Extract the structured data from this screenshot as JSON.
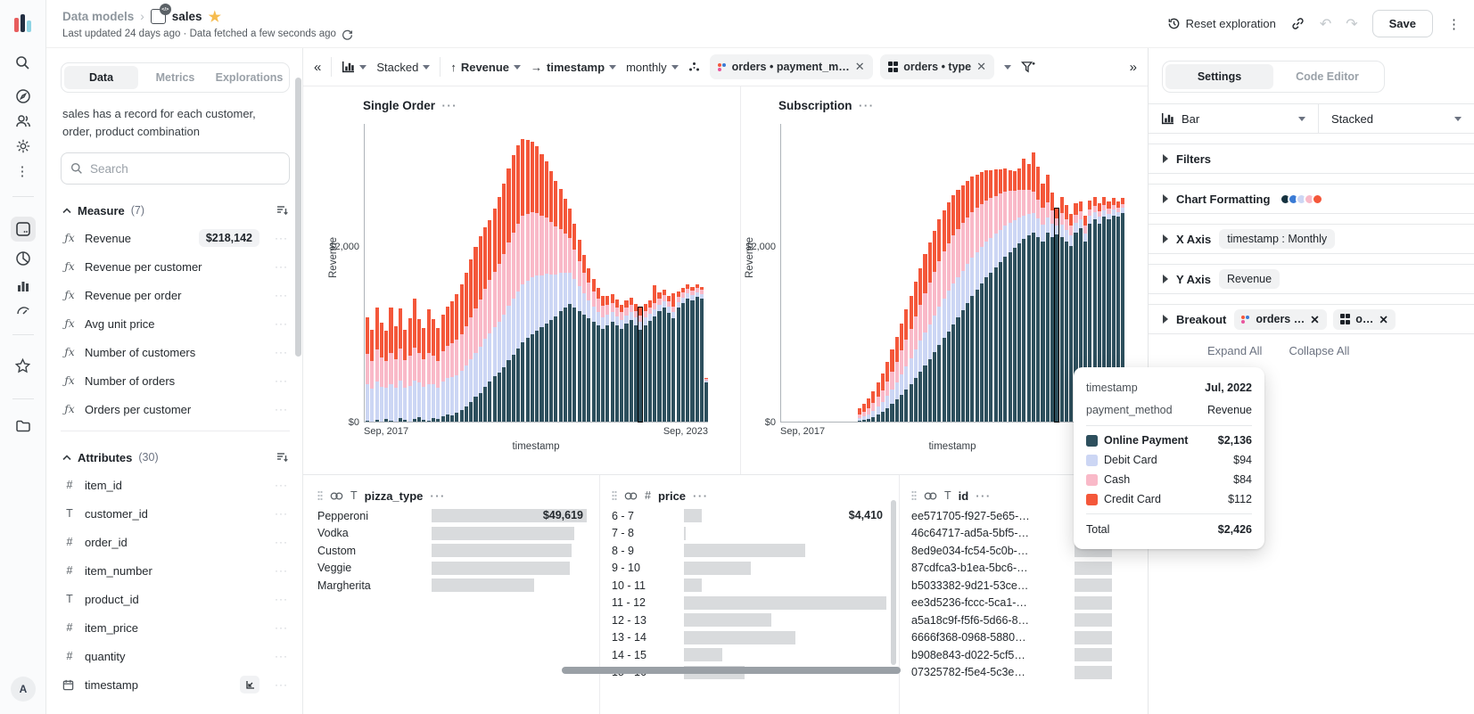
{
  "topbar": {
    "breadcrumb_root": "Data models",
    "breadcrumb_sep": "›",
    "title": "sales",
    "subtitle": "Last updated 24 days ago · Data fetched a few seconds ago",
    "reset_label": "Reset exploration",
    "save_label": "Save"
  },
  "icons": {
    "rail": [
      "logo",
      "search-icon",
      "compass-icon",
      "users-icon",
      "gear-icon",
      "kebab-icon",
      "model-icon",
      "pivot-icon",
      "bar-chart-icon",
      "gauge-icon",
      "star-icon",
      "folder-icon",
      "avatar"
    ],
    "avatar_letter": "A"
  },
  "left_panel": {
    "tabs": [
      "Data",
      "Metrics",
      "Explorations"
    ],
    "active_tab": "Data",
    "description": "sales has a record for each customer, order, product combination",
    "search_placeholder": "Search",
    "measure_section": {
      "label": "Measure",
      "count": "(7)"
    },
    "measures": [
      {
        "name": "Revenue",
        "badge": "$218,142"
      },
      {
        "name": "Revenue per customer"
      },
      {
        "name": "Revenue per order"
      },
      {
        "name": "Avg unit price"
      },
      {
        "name": "Number of customers"
      },
      {
        "name": "Number of orders"
      },
      {
        "name": "Orders per customer"
      }
    ],
    "attribute_section": {
      "label": "Attributes",
      "count": "(30)"
    },
    "attributes": [
      {
        "name": "item_id",
        "type": "number"
      },
      {
        "name": "customer_id",
        "type": "text"
      },
      {
        "name": "order_id",
        "type": "number"
      },
      {
        "name": "item_number",
        "type": "number"
      },
      {
        "name": "product_id",
        "type": "text"
      },
      {
        "name": "item_price",
        "type": "number"
      },
      {
        "name": "quantity",
        "type": "number"
      },
      {
        "name": "timestamp",
        "type": "date",
        "axis_indicator": true
      }
    ]
  },
  "toolbar": {
    "stack_label": "Stacked",
    "y_field": "Revenue",
    "x_field": "timestamp",
    "granularity": "monthly",
    "breakout_chips": [
      {
        "label": "orders • payment_m…",
        "icon": "color-dots-icon"
      },
      {
        "label": "orders • type",
        "icon": "grid-icon"
      }
    ]
  },
  "chart_data": [
    {
      "type": "bar",
      "stacked": true,
      "title": "Single Order",
      "xlabel": "timestamp",
      "ylabel": "Revenue",
      "y_ticks": [
        "$0",
        "$2,000"
      ],
      "ylim": [
        0,
        3400
      ],
      "x_ticks": [
        "Sep, 2017",
        "Sep, 2023"
      ],
      "highlight_index": 58,
      "series": [
        {
          "name": "Online Payment",
          "color": "#2d4f5d",
          "values": [
            10,
            0,
            20,
            0,
            30,
            10,
            0,
            40,
            20,
            0,
            30,
            50,
            20,
            10,
            40,
            30,
            60,
            80,
            70,
            100,
            130,
            170,
            220,
            280,
            330,
            400,
            460,
            520,
            560,
            620,
            700,
            760,
            830,
            900,
            950,
            1000,
            1040,
            1080,
            1120,
            1160,
            1200,
            1260,
            1300,
            1340,
            1300,
            1260,
            1220,
            1180,
            1140,
            1100,
            1060,
            1100,
            1140,
            1100,
            1060,
            1120,
            1160,
            1100,
            1050,
            1100,
            1150,
            1200,
            1260,
            1300,
            1240,
            1180,
            1300,
            1350,
            1400,
            1380,
            1420,
            1400,
            450
          ]
        },
        {
          "name": "Debit Card",
          "color": "#ccd6f4",
          "values": [
            420,
            380,
            440,
            400,
            360,
            420,
            390,
            430,
            370,
            410,
            440,
            400,
            380,
            420,
            390,
            360,
            400,
            420,
            440,
            430,
            450,
            470,
            490,
            500,
            520,
            540,
            550,
            560,
            580,
            600,
            620,
            640,
            650,
            660,
            650,
            640,
            620,
            590,
            560,
            520,
            480,
            440,
            400,
            360,
            320,
            280,
            240,
            200,
            170,
            150,
            130,
            120,
            110,
            100,
            95,
            90,
            90,
            85,
            90,
            85,
            80,
            80,
            75,
            75,
            70,
            70,
            65,
            65,
            60,
            60,
            55,
            55,
            20
          ]
        },
        {
          "name": "Cash",
          "color": "#f9b9c8",
          "values": [
            340,
            310,
            360,
            330,
            300,
            350,
            320,
            360,
            310,
            340,
            370,
            330,
            310,
            350,
            320,
            300,
            340,
            360,
            380,
            400,
            420,
            450,
            480,
            510,
            540,
            570,
            600,
            630,
            660,
            690,
            720,
            750,
            770,
            780,
            770,
            750,
            720,
            680,
            640,
            590,
            540,
            490,
            440,
            390,
            340,
            290,
            240,
            200,
            170,
            150,
            130,
            115,
            105,
            95,
            90,
            85,
            80,
            78,
            70,
            75,
            72,
            70,
            68,
            65,
            62,
            60,
            58,
            55,
            52,
            50,
            48,
            45,
            15
          ]
        },
        {
          "name": "Credit Card",
          "color": "#f4573a",
          "values": [
            420,
            360,
            480,
            400,
            340,
            520,
            380,
            460,
            350,
            430,
            560,
            390,
            360,
            500,
            420,
            380,
            420,
            450,
            480,
            520,
            560,
            610,
            660,
            700,
            720,
            700,
            680,
            720,
            760,
            800,
            840,
            880,
            900,
            880,
            840,
            800,
            760,
            700,
            640,
            580,
            520,
            460,
            400,
            340,
            290,
            240,
            200,
            170,
            140,
            120,
            110,
            100,
            95,
            90,
            85,
            80,
            80,
            75,
            90,
            80,
            75,
            200,
            70,
            65,
            60,
            150,
            60,
            55,
            50,
            45,
            40,
            35,
            10
          ]
        }
      ]
    },
    {
      "type": "bar",
      "stacked": true,
      "title": "Subscription",
      "xlabel": "timestamp",
      "ylabel": "Revenue",
      "y_ticks": [
        "$0",
        "$2,000"
      ],
      "ylim": [
        0,
        3400
      ],
      "x_ticks": [
        "Sep, 2017"
      ],
      "highlight_index": 58,
      "series": [
        {
          "name": "Online Payment",
          "color": "#2d4f5d",
          "values": [
            0,
            0,
            0,
            0,
            0,
            0,
            0,
            0,
            0,
            0,
            0,
            0,
            0,
            0,
            0,
            0,
            10,
            20,
            30,
            50,
            80,
            110,
            150,
            200,
            250,
            310,
            370,
            430,
            500,
            570,
            640,
            710,
            790,
            870,
            950,
            1030,
            1110,
            1190,
            1270,
            1350,
            1430,
            1500,
            1570,
            1640,
            1700,
            1760,
            1820,
            1880,
            1930,
            1980,
            2030,
            2080,
            2120,
            2150,
            2100,
            2050,
            2150,
            2100,
            2136,
            2100,
            2050,
            2000,
            2150,
            2200,
            2050,
            2250,
            2300,
            2250,
            2330,
            2300,
            2350,
            2330,
            2380
          ]
        },
        {
          "name": "Debit Card",
          "color": "#ccd6f4",
          "values": [
            0,
            0,
            0,
            0,
            0,
            0,
            0,
            0,
            0,
            0,
            0,
            0,
            0,
            0,
            0,
            0,
            30,
            40,
            50,
            70,
            90,
            110,
            140,
            170,
            200,
            230,
            260,
            290,
            320,
            350,
            380,
            400,
            420,
            440,
            450,
            460,
            460,
            455,
            450,
            445,
            440,
            430,
            420,
            410,
            395,
            380,
            365,
            350,
            330,
            310,
            290,
            270,
            250,
            230,
            210,
            190,
            170,
            150,
            94,
            140,
            130,
            120,
            110,
            100,
            95,
            90,
            85,
            80,
            75,
            70,
            65,
            60,
            55
          ]
        },
        {
          "name": "Cash",
          "color": "#f9b9c8",
          "values": [
            0,
            0,
            0,
            0,
            0,
            0,
            0,
            0,
            0,
            0,
            0,
            0,
            0,
            0,
            0,
            0,
            40,
            55,
            70,
            90,
            115,
            140,
            170,
            200,
            235,
            270,
            305,
            340,
            375,
            410,
            445,
            475,
            500,
            520,
            535,
            545,
            550,
            545,
            540,
            530,
            520,
            505,
            490,
            470,
            450,
            430,
            410,
            390,
            365,
            340,
            315,
            290,
            265,
            240,
            215,
            195,
            175,
            155,
            84,
            140,
            125,
            110,
            100,
            90,
            85,
            80,
            75,
            70,
            65,
            60,
            55,
            50,
            45
          ]
        },
        {
          "name": "Credit Card",
          "color": "#f4573a",
          "values": [
            0,
            0,
            0,
            0,
            0,
            0,
            0,
            0,
            0,
            0,
            0,
            0,
            0,
            0,
            0,
            0,
            70,
            90,
            110,
            135,
            160,
            190,
            220,
            250,
            280,
            310,
            340,
            370,
            400,
            420,
            440,
            455,
            465,
            470,
            470,
            465,
            455,
            445,
            430,
            415,
            400,
            380,
            360,
            340,
            320,
            300,
            280,
            260,
            240,
            220,
            250,
            350,
            300,
            450,
            380,
            280,
            320,
            200,
            112,
            180,
            160,
            140,
            130,
            120,
            110,
            100,
            95,
            90,
            85,
            80,
            75,
            70,
            65
          ]
        }
      ]
    }
  ],
  "tooltip": {
    "header": [
      {
        "label": "timestamp",
        "value": "Jul, 2022",
        "bold": true
      },
      {
        "label": "payment_method",
        "value": "Revenue",
        "bold": false
      }
    ],
    "rows": [
      {
        "label": "Online Payment",
        "value": "$2,136",
        "color": "#2d4f5d",
        "bold": true
      },
      {
        "label": "Debit Card",
        "value": "$94",
        "color": "#ccd6f4",
        "bold": false
      },
      {
        "label": "Cash",
        "value": "$84",
        "color": "#f9b9c8",
        "bold": false
      },
      {
        "label": "Credit Card",
        "value": "$112",
        "color": "#f4573a",
        "bold": false
      }
    ],
    "total_label": "Total",
    "total_value": "$2,426"
  },
  "right_panel": {
    "tabs": [
      "Settings",
      "Code Editor"
    ],
    "active_tab": "Settings",
    "chart_type": "Bar",
    "stack_mode": "Stacked",
    "sections": {
      "filters": "Filters",
      "chart_formatting": "Chart Formatting",
      "x_axis": "X Axis",
      "x_axis_chip": "timestamp : Monthly",
      "y_axis": "Y Axis",
      "y_axis_chip": "Revenue",
      "breakout": "Breakout",
      "breakout_chips": [
        {
          "label": "orders …",
          "icon": "color-dots-icon"
        },
        {
          "label": "o…",
          "icon": "grid-icon"
        }
      ]
    },
    "palette": [
      "#16323f",
      "#3a7bd5",
      "#ccd6f4",
      "#f9b9c8",
      "#f4573a"
    ],
    "expand_all": "Expand All",
    "collapse_all": "Collapse All"
  },
  "summary_tables": [
    {
      "name": "pizza_type",
      "type": "text",
      "rows": [
        {
          "label": "Pepperoni",
          "value": "$49,619",
          "bar": 1.0
        },
        {
          "label": "Vodka",
          "bar": 0.92
        },
        {
          "label": "Custom",
          "bar": 0.9
        },
        {
          "label": "Veggie",
          "bar": 0.89
        },
        {
          "label": "Margherita",
          "bar": 0.66
        }
      ]
    },
    {
      "name": "price",
      "type": "number",
      "rows": [
        {
          "label": "6 - 7",
          "value": "$4,410",
          "bar": 0.09
        },
        {
          "label": "7 - 8",
          "bar": 0.01
        },
        {
          "label": "8 - 9",
          "bar": 0.6
        },
        {
          "label": "9 - 10",
          "bar": 0.33
        },
        {
          "label": "10 - 11",
          "bar": 0.09
        },
        {
          "label": "11 - 12",
          "bar": 1.0
        },
        {
          "label": "12 - 13",
          "bar": 0.43
        },
        {
          "label": "13 - 14",
          "bar": 0.55
        },
        {
          "label": "14 - 15",
          "bar": 0.19
        },
        {
          "label": "15 - 16",
          "bar": 0.3
        }
      ]
    },
    {
      "name": "id",
      "type": "text",
      "rows": [
        {
          "label": "ee571705-f927-5e65-…",
          "bar": 0.62
        },
        {
          "label": "46c64717-ad5a-5bf5-…",
          "bar": 0.62
        },
        {
          "label": "8ed9e034-fc54-5c0b-…",
          "bar": 0.62
        },
        {
          "label": "87cdfca3-b1ea-5bc6-…",
          "bar": 0.62
        },
        {
          "label": "b5033382-9d21-53ce…",
          "bar": 0.62
        },
        {
          "label": "ee3d5236-fccc-5ca1-…",
          "bar": 0.62
        },
        {
          "label": "a5a18c9f-f5f6-5d66-8…",
          "bar": 0.62
        },
        {
          "label": "6666f368-0968-5880…",
          "bar": 0.62
        },
        {
          "label": "b908e843-d022-5cf5…",
          "bar": 0.62
        },
        {
          "label": "07325782-f5e4-5c3e…",
          "bar": 0.62
        }
      ]
    }
  ]
}
